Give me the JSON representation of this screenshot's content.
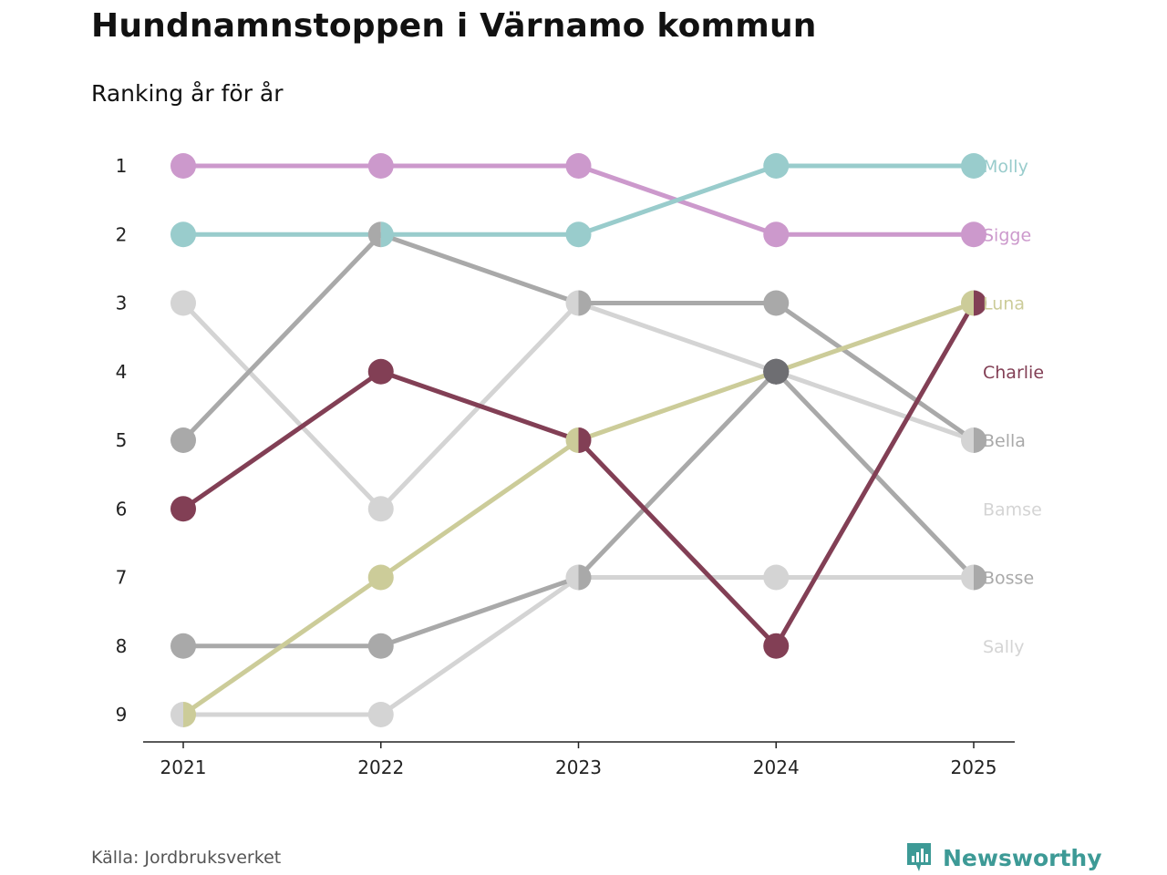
{
  "title": "Hundnamnstoppen i Värnamo kommun",
  "subtitle": "Ranking år för år",
  "source": "Källa: Jordbruksverket",
  "brand": {
    "name": "Newsworthy",
    "icon": "newsworthy-logo-icon",
    "color": "#3d9a96"
  },
  "chart_data": {
    "type": "line",
    "x": [
      "2021",
      "2022",
      "2023",
      "2024",
      "2025"
    ],
    "y_ticks": [
      "1",
      "2",
      "3",
      "4",
      "5",
      "6",
      "7",
      "8",
      "9"
    ],
    "y_reversed": true,
    "ylim": [
      1,
      9
    ],
    "grid": false,
    "series": [
      {
        "name": "Bamse",
        "color": "#d4d4d4",
        "values": [
          3,
          6,
          3,
          4,
          5
        ]
      },
      {
        "name": "Sally",
        "color": "#d4d4d4",
        "values": [
          9,
          9,
          7,
          7,
          7
        ]
      },
      {
        "name": "Bosse",
        "color": "#a9a9a9",
        "values": [
          8,
          8,
          7,
          4,
          7
        ]
      },
      {
        "name": "Bella",
        "color": "#a9a9a9",
        "values": [
          5,
          2,
          3,
          3,
          5
        ]
      },
      {
        "name": "Luna",
        "color": "#cccc99",
        "values": [
          9,
          7,
          5,
          4,
          3
        ]
      },
      {
        "name": "Charlie",
        "color": "#823f55",
        "values": [
          6,
          4,
          5,
          8,
          3
        ]
      },
      {
        "name": "Sigge",
        "color": "#cc99cc",
        "values": [
          1,
          1,
          1,
          2,
          2
        ]
      },
      {
        "name": "Molly",
        "color": "#99cccc",
        "values": [
          2,
          2,
          2,
          1,
          1
        ]
      }
    ],
    "end_labels": [
      {
        "name": "Molly",
        "rank": 1,
        "color": "#99cccc"
      },
      {
        "name": "Sigge",
        "rank": 2,
        "color": "#cc99cc"
      },
      {
        "name": "Luna",
        "rank": 3,
        "color": "#cccc99"
      },
      {
        "name": "Charlie",
        "rank": 4,
        "color": "#823f55"
      },
      {
        "name": "Bella",
        "rank": 5,
        "color": "#a9a9a9"
      },
      {
        "name": "Bamse",
        "rank": 6,
        "color": "#d4d4d4"
      },
      {
        "name": "Bosse",
        "rank": 7,
        "color": "#a9a9a9"
      },
      {
        "name": "Sally",
        "rank": 8,
        "color": "#d4d4d4"
      }
    ],
    "highlight_color": "#6e6e72"
  }
}
